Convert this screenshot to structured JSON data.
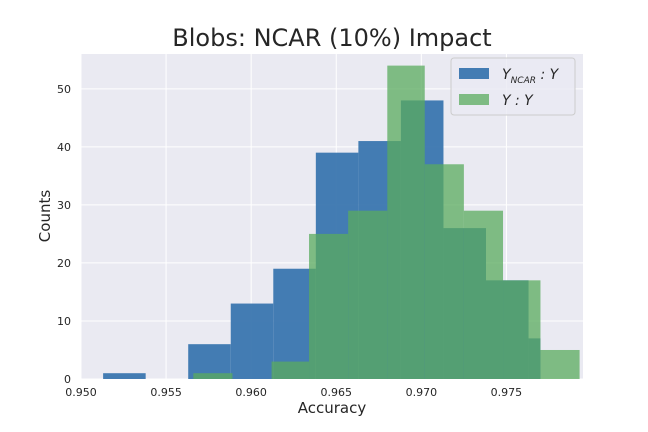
{
  "chart_data": {
    "type": "histogram",
    "title": "Blobs: NCAR (10%) Impact",
    "xlabel": "Accuracy",
    "ylabel": "Counts",
    "xlim": [
      0.95,
      0.9795
    ],
    "ylim": [
      0,
      56
    ],
    "x_ticks": [
      "0.950",
      "0.955",
      "0.960",
      "0.965",
      "0.970",
      "0.975"
    ],
    "x_tick_values": [
      0.95,
      0.955,
      0.96,
      0.965,
      0.97,
      0.975
    ],
    "y_ticks": [
      "0",
      "10",
      "20",
      "30",
      "40",
      "50"
    ],
    "y_tick_values": [
      0,
      10,
      20,
      30,
      40,
      50
    ],
    "grid": true,
    "legend_position": "top-right",
    "series": [
      {
        "name": "Y_NCAR : Y",
        "legend_main": "Y",
        "legend_sub": "NCAR",
        "legend_rest": " : Y",
        "color": "#3a76af",
        "bins": [
          {
            "x0": 0.9513,
            "x1": 0.9538,
            "count": 1
          },
          {
            "x0": 0.9538,
            "x1": 0.9563,
            "count": 0
          },
          {
            "x0": 0.9563,
            "x1": 0.9588,
            "count": 6
          },
          {
            "x0": 0.9588,
            "x1": 0.9613,
            "count": 13
          },
          {
            "x0": 0.9613,
            "x1": 0.9638,
            "count": 19
          },
          {
            "x0": 0.9638,
            "x1": 0.9663,
            "count": 39
          },
          {
            "x0": 0.9663,
            "x1": 0.9688,
            "count": 41
          },
          {
            "x0": 0.9688,
            "x1": 0.9713,
            "count": 48
          },
          {
            "x0": 0.9713,
            "x1": 0.9738,
            "count": 26
          },
          {
            "x0": 0.9738,
            "x1": 0.9763,
            "count": 17
          },
          {
            "x0": 0.9763,
            "x1": 0.977,
            "count": 7
          }
        ]
      },
      {
        "name": "Y : Y",
        "legend_main": "Y",
        "legend_sub": "",
        "legend_rest": " : Y",
        "color": "#5aab5e",
        "bins": [
          {
            "x0": 0.9566,
            "x1": 0.9589,
            "count": 1
          },
          {
            "x0": 0.9589,
            "x1": 0.9612,
            "count": 0
          },
          {
            "x0": 0.9612,
            "x1": 0.9634,
            "count": 3
          },
          {
            "x0": 0.9634,
            "x1": 0.9657,
            "count": 25
          },
          {
            "x0": 0.9657,
            "x1": 0.968,
            "count": 29
          },
          {
            "x0": 0.968,
            "x1": 0.9702,
            "count": 54
          },
          {
            "x0": 0.9702,
            "x1": 0.9725,
            "count": 37
          },
          {
            "x0": 0.9725,
            "x1": 0.9748,
            "count": 29
          },
          {
            "x0": 0.9748,
            "x1": 0.977,
            "count": 17
          },
          {
            "x0": 0.977,
            "x1": 0.9793,
            "count": 5
          }
        ]
      }
    ]
  }
}
